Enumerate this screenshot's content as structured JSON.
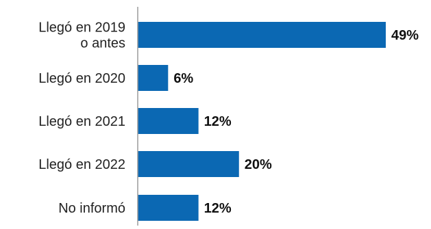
{
  "chart_data": {
    "type": "bar",
    "orientation": "horizontal",
    "categories": [
      [
        "Llegó en 2019",
        "o antes"
      ],
      [
        "Llegó en 2020"
      ],
      [
        "Llegó en 2021"
      ],
      [
        "Llegó en 2022"
      ],
      [
        "No informó"
      ]
    ],
    "values": [
      49,
      6,
      12,
      20,
      12
    ],
    "value_labels": [
      "49%",
      "6%",
      "12%",
      "20%",
      "12%"
    ],
    "unit": "%",
    "xlim": [
      0,
      49
    ],
    "grid": false,
    "bar_color": "#0b68b3",
    "axis_color": "#9a9a9a"
  }
}
